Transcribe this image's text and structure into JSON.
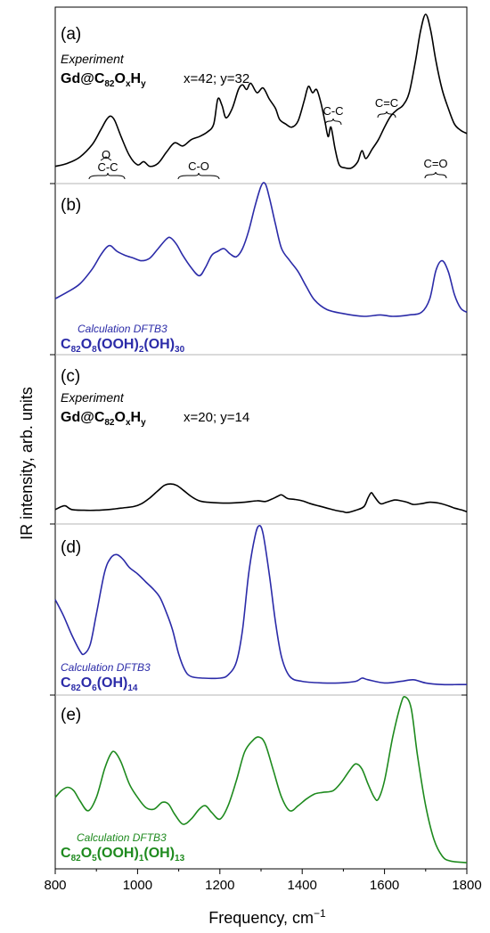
{
  "colors": {
    "black": "#000000",
    "blue": "#2b2ba8",
    "green": "#1e8a1e",
    "divider": "#b5b5b5"
  },
  "chart_data": {
    "type": "line",
    "xlabel": "Frequency, cm",
    "xlabel_sup": "−1",
    "ylabel": "IR intensity, arb. units",
    "xlim": [
      800,
      1800
    ],
    "xticks": [
      "800",
      "1000",
      "1200",
      "1400",
      "1600",
      "1800"
    ],
    "panels": [
      {
        "label": "(a)",
        "color": "black",
        "texts": {
          "kind": "Experiment",
          "formula_main": "Gd@C",
          "formula_sub1": "82",
          "formula_mid": "O",
          "formula_sub2": "x",
          "formula_mid2": "H",
          "formula_sub3": "y",
          "params": "x=42; y=32"
        },
        "annotations": {
          "epoxide_top": "O",
          "epoxide_bottom": "C-C",
          "co": "C-O",
          "cc": "C-C",
          "c_eq_c": "C=C",
          "c_eq_o": "C=O"
        },
        "points": [
          [
            800,
            0.03
          ],
          [
            830,
            0.05
          ],
          [
            860,
            0.09
          ],
          [
            890,
            0.17
          ],
          [
            910,
            0.26
          ],
          [
            925,
            0.33
          ],
          [
            935,
            0.35
          ],
          [
            945,
            0.32
          ],
          [
            960,
            0.22
          ],
          [
            980,
            0.1
          ],
          [
            1000,
            0.04
          ],
          [
            1015,
            0.06
          ],
          [
            1030,
            0.03
          ],
          [
            1050,
            0.05
          ],
          [
            1070,
            0.12
          ],
          [
            1090,
            0.18
          ],
          [
            1110,
            0.16
          ],
          [
            1130,
            0.2
          ],
          [
            1150,
            0.22
          ],
          [
            1170,
            0.25
          ],
          [
            1185,
            0.3
          ],
          [
            1195,
            0.46
          ],
          [
            1205,
            0.42
          ],
          [
            1215,
            0.34
          ],
          [
            1230,
            0.4
          ],
          [
            1245,
            0.52
          ],
          [
            1255,
            0.55
          ],
          [
            1265,
            0.52
          ],
          [
            1275,
            0.56
          ],
          [
            1290,
            0.5
          ],
          [
            1305,
            0.53
          ],
          [
            1320,
            0.46
          ],
          [
            1335,
            0.4
          ],
          [
            1345,
            0.33
          ],
          [
            1360,
            0.3
          ],
          [
            1375,
            0.28
          ],
          [
            1390,
            0.32
          ],
          [
            1405,
            0.45
          ],
          [
            1415,
            0.54
          ],
          [
            1425,
            0.5
          ],
          [
            1435,
            0.52
          ],
          [
            1445,
            0.44
          ],
          [
            1455,
            0.32
          ],
          [
            1463,
            0.22
          ],
          [
            1470,
            0.28
          ],
          [
            1480,
            0.14
          ],
          [
            1490,
            0.04
          ],
          [
            1505,
            0.02
          ],
          [
            1520,
            0.02
          ],
          [
            1535,
            0.06
          ],
          [
            1545,
            0.13
          ],
          [
            1555,
            0.08
          ],
          [
            1570,
            0.14
          ],
          [
            1585,
            0.2
          ],
          [
            1600,
            0.28
          ],
          [
            1615,
            0.35
          ],
          [
            1630,
            0.39
          ],
          [
            1645,
            0.42
          ],
          [
            1660,
            0.5
          ],
          [
            1675,
            0.7
          ],
          [
            1688,
            0.9
          ],
          [
            1700,
            1.0
          ],
          [
            1712,
            0.9
          ],
          [
            1725,
            0.7
          ],
          [
            1740,
            0.52
          ],
          [
            1755,
            0.4
          ],
          [
            1770,
            0.3
          ],
          [
            1785,
            0.26
          ],
          [
            1800,
            0.24
          ]
        ]
      },
      {
        "label": "(b)",
        "color": "blue",
        "texts": {
          "calc": "Calculation DFTB3",
          "formula_main": "C",
          "formula_sub1": "82",
          "formula_mid": "O",
          "formula_sub2": "8",
          "formula_mid2": "(OOH)",
          "formula_sub3": "2",
          "formula_mid3": "(OH)",
          "formula_sub4": "30"
        },
        "points": [
          [
            800,
            0.15
          ],
          [
            830,
            0.2
          ],
          [
            860,
            0.26
          ],
          [
            890,
            0.37
          ],
          [
            910,
            0.47
          ],
          [
            925,
            0.53
          ],
          [
            935,
            0.54
          ],
          [
            950,
            0.5
          ],
          [
            970,
            0.47
          ],
          [
            990,
            0.45
          ],
          [
            1010,
            0.43
          ],
          [
            1030,
            0.45
          ],
          [
            1050,
            0.52
          ],
          [
            1070,
            0.59
          ],
          [
            1080,
            0.6
          ],
          [
            1095,
            0.55
          ],
          [
            1110,
            0.47
          ],
          [
            1130,
            0.38
          ],
          [
            1150,
            0.32
          ],
          [
            1165,
            0.38
          ],
          [
            1180,
            0.47
          ],
          [
            1195,
            0.5
          ],
          [
            1210,
            0.52
          ],
          [
            1225,
            0.48
          ],
          [
            1240,
            0.46
          ],
          [
            1255,
            0.52
          ],
          [
            1270,
            0.65
          ],
          [
            1285,
            0.83
          ],
          [
            1300,
            0.98
          ],
          [
            1310,
            1.0
          ],
          [
            1320,
            0.9
          ],
          [
            1335,
            0.7
          ],
          [
            1350,
            0.52
          ],
          [
            1370,
            0.43
          ],
          [
            1390,
            0.35
          ],
          [
            1410,
            0.24
          ],
          [
            1430,
            0.14
          ],
          [
            1460,
            0.07
          ],
          [
            1500,
            0.04
          ],
          [
            1550,
            0.02
          ],
          [
            1590,
            0.03
          ],
          [
            1620,
            0.02
          ],
          [
            1660,
            0.03
          ],
          [
            1690,
            0.05
          ],
          [
            1710,
            0.15
          ],
          [
            1725,
            0.36
          ],
          [
            1740,
            0.43
          ],
          [
            1755,
            0.35
          ],
          [
            1770,
            0.18
          ],
          [
            1785,
            0.08
          ],
          [
            1800,
            0.05
          ]
        ]
      },
      {
        "label": "(c)",
        "color": "black",
        "texts": {
          "kind": "Experiment",
          "formula_main": "Gd@C",
          "formula_sub1": "82",
          "formula_mid": "O",
          "formula_sub2": "x",
          "formula_mid2": "H",
          "formula_sub3": "y",
          "params": "x=20; y=14"
        },
        "points": [
          [
            800,
            0.1
          ],
          [
            815,
            0.14
          ],
          [
            825,
            0.15
          ],
          [
            840,
            0.1
          ],
          [
            870,
            0.09
          ],
          [
            900,
            0.09
          ],
          [
            930,
            0.1
          ],
          [
            960,
            0.12
          ],
          [
            990,
            0.14
          ],
          [
            1010,
            0.18
          ],
          [
            1030,
            0.26
          ],
          [
            1050,
            0.36
          ],
          [
            1065,
            0.43
          ],
          [
            1080,
            0.45
          ],
          [
            1095,
            0.43
          ],
          [
            1110,
            0.37
          ],
          [
            1130,
            0.28
          ],
          [
            1150,
            0.22
          ],
          [
            1170,
            0.2
          ],
          [
            1200,
            0.19
          ],
          [
            1230,
            0.19
          ],
          [
            1260,
            0.2
          ],
          [
            1290,
            0.22
          ],
          [
            1310,
            0.21
          ],
          [
            1325,
            0.24
          ],
          [
            1340,
            0.28
          ],
          [
            1350,
            0.3
          ],
          [
            1365,
            0.25
          ],
          [
            1380,
            0.24
          ],
          [
            1400,
            0.22
          ],
          [
            1420,
            0.18
          ],
          [
            1440,
            0.15
          ],
          [
            1460,
            0.12
          ],
          [
            1480,
            0.09
          ],
          [
            1500,
            0.07
          ],
          [
            1510,
            0.06
          ],
          [
            1530,
            0.09
          ],
          [
            1550,
            0.14
          ],
          [
            1560,
            0.26
          ],
          [
            1568,
            0.33
          ],
          [
            1575,
            0.28
          ],
          [
            1590,
            0.18
          ],
          [
            1605,
            0.2
          ],
          [
            1625,
            0.23
          ],
          [
            1640,
            0.22
          ],
          [
            1655,
            0.2
          ],
          [
            1670,
            0.17
          ],
          [
            1690,
            0.18
          ],
          [
            1710,
            0.2
          ],
          [
            1730,
            0.19
          ],
          [
            1750,
            0.16
          ],
          [
            1770,
            0.12
          ],
          [
            1790,
            0.09
          ],
          [
            1800,
            0.07
          ]
        ]
      },
      {
        "label": "(d)",
        "color": "blue",
        "texts": {
          "calc": "Calculation DFTB3",
          "formula_main": "C",
          "formula_sub1": "82",
          "formula_mid": "O",
          "formula_sub2": "6",
          "formula_mid2": "(OH)",
          "formula_sub3": "14"
        },
        "points": [
          [
            800,
            0.54
          ],
          [
            820,
            0.44
          ],
          [
            840,
            0.32
          ],
          [
            860,
            0.22
          ],
          [
            870,
            0.2
          ],
          [
            885,
            0.26
          ],
          [
            900,
            0.45
          ],
          [
            920,
            0.71
          ],
          [
            935,
            0.8
          ],
          [
            950,
            0.82
          ],
          [
            965,
            0.79
          ],
          [
            980,
            0.74
          ],
          [
            1000,
            0.7
          ],
          [
            1020,
            0.65
          ],
          [
            1040,
            0.6
          ],
          [
            1055,
            0.55
          ],
          [
            1070,
            0.46
          ],
          [
            1085,
            0.35
          ],
          [
            1100,
            0.2
          ],
          [
            1115,
            0.1
          ],
          [
            1130,
            0.06
          ],
          [
            1160,
            0.05
          ],
          [
            1200,
            0.05
          ],
          [
            1220,
            0.07
          ],
          [
            1240,
            0.15
          ],
          [
            1255,
            0.35
          ],
          [
            1270,
            0.7
          ],
          [
            1285,
            0.93
          ],
          [
            1295,
            1.0
          ],
          [
            1305,
            0.95
          ],
          [
            1320,
            0.7
          ],
          [
            1335,
            0.4
          ],
          [
            1350,
            0.18
          ],
          [
            1370,
            0.06
          ],
          [
            1400,
            0.03
          ],
          [
            1450,
            0.02
          ],
          [
            1490,
            0.02
          ],
          [
            1530,
            0.03
          ],
          [
            1545,
            0.05
          ],
          [
            1560,
            0.04
          ],
          [
            1600,
            0.02
          ],
          [
            1640,
            0.03
          ],
          [
            1670,
            0.04
          ],
          [
            1700,
            0.02
          ],
          [
            1740,
            0.01
          ],
          [
            1780,
            0.01
          ],
          [
            1800,
            0.01
          ]
        ]
      },
      {
        "label": "(e)",
        "color": "green",
        "texts": {
          "calc": "Calculation DFTB3",
          "formula_main": "C",
          "formula_sub1": "82",
          "formula_mid": "O",
          "formula_sub2": "5",
          "formula_mid2": "(OOH)",
          "formula_sub3": "1",
          "formula_mid3": "(OH)",
          "formula_sub4": "13"
        },
        "points": [
          [
            800,
            0.4
          ],
          [
            815,
            0.44
          ],
          [
            830,
            0.46
          ],
          [
            845,
            0.44
          ],
          [
            860,
            0.38
          ],
          [
            880,
            0.32
          ],
          [
            900,
            0.4
          ],
          [
            920,
            0.57
          ],
          [
            935,
            0.66
          ],
          [
            945,
            0.67
          ],
          [
            960,
            0.61
          ],
          [
            980,
            0.48
          ],
          [
            1000,
            0.4
          ],
          [
            1020,
            0.34
          ],
          [
            1040,
            0.33
          ],
          [
            1060,
            0.37
          ],
          [
            1075,
            0.36
          ],
          [
            1090,
            0.3
          ],
          [
            1110,
            0.24
          ],
          [
            1130,
            0.27
          ],
          [
            1150,
            0.33
          ],
          [
            1165,
            0.35
          ],
          [
            1180,
            0.31
          ],
          [
            1200,
            0.27
          ],
          [
            1220,
            0.35
          ],
          [
            1240,
            0.5
          ],
          [
            1260,
            0.67
          ],
          [
            1280,
            0.74
          ],
          [
            1295,
            0.76
          ],
          [
            1310,
            0.72
          ],
          [
            1330,
            0.56
          ],
          [
            1350,
            0.4
          ],
          [
            1370,
            0.32
          ],
          [
            1390,
            0.35
          ],
          [
            1410,
            0.39
          ],
          [
            1430,
            0.42
          ],
          [
            1450,
            0.43
          ],
          [
            1475,
            0.44
          ],
          [
            1495,
            0.49
          ],
          [
            1515,
            0.56
          ],
          [
            1530,
            0.6
          ],
          [
            1545,
            0.57
          ],
          [
            1560,
            0.48
          ],
          [
            1575,
            0.4
          ],
          [
            1585,
            0.39
          ],
          [
            1600,
            0.5
          ],
          [
            1620,
            0.76
          ],
          [
            1640,
            0.96
          ],
          [
            1650,
            1.0
          ],
          [
            1665,
            0.93
          ],
          [
            1680,
            0.65
          ],
          [
            1700,
            0.35
          ],
          [
            1720,
            0.15
          ],
          [
            1740,
            0.05
          ],
          [
            1760,
            0.02
          ],
          [
            1800,
            0.01
          ]
        ]
      }
    ]
  }
}
